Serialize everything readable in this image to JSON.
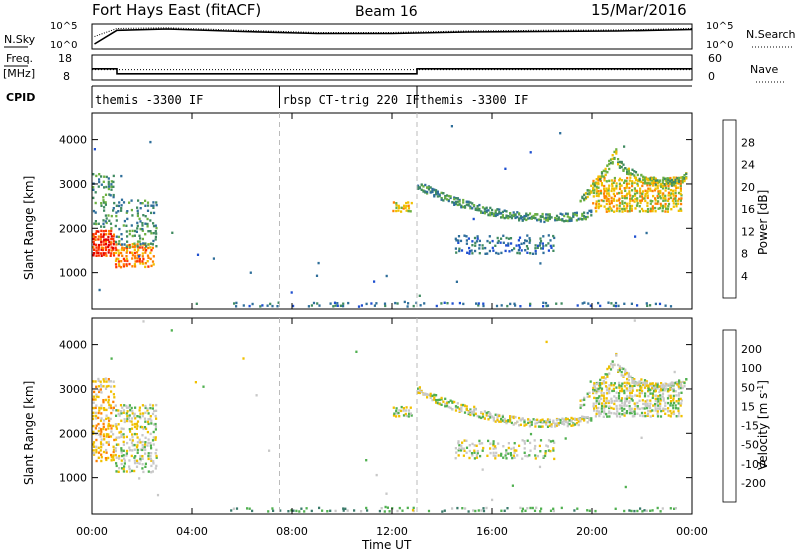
{
  "header": {
    "title": "Fort Hays East (fitACF)",
    "beam": "Beam 16",
    "date": "15/Mar/2016"
  },
  "noise_panel": {
    "left_label": "N.Sky",
    "right_label": "N.Search",
    "left_ticks": [
      "10^5",
      "10^0"
    ],
    "right_ticks": [
      "10^5",
      "10^0"
    ]
  },
  "freq_panel": {
    "left_label_1": "Freq.",
    "left_label_2": "[MHz]",
    "right_label": "Nave",
    "left_ticks": [
      "18",
      "8"
    ],
    "right_ticks": [
      "60",
      "0"
    ]
  },
  "cpid_panel": {
    "label": "CPID",
    "segments": [
      {
        "name": "themis -3300 IF",
        "start_hour": 0,
        "end_hour": 7.5
      },
      {
        "name": "rbsp CT-trig 220 IF",
        "start_hour": 7.5,
        "end_hour": 13.0
      },
      {
        "name": "themis -3300 IF",
        "start_hour": 13.0,
        "end_hour": 24
      }
    ]
  },
  "power_colorbar": {
    "label": "Power [dB]",
    "ticks": [
      "28",
      "24",
      "20",
      "16",
      "12",
      "8",
      "4"
    ],
    "colors": [
      "#0000ff",
      "#1e4fd0",
      "#2e6e9a",
      "#3f8a60",
      "#6bb040",
      "#f0c000",
      "#ff8000",
      "#ff3000",
      "#e00000"
    ]
  },
  "velocity_colorbar": {
    "label": "Velocity [m s",
    "label_exp": "-1",
    "label_end": "]",
    "ticks": [
      "200",
      "100",
      "50",
      "15",
      "-15",
      "-50",
      "-100",
      "-200"
    ],
    "colors": [
      "#0000c0",
      "#2040c0",
      "#3a7a6a",
      "#50b050",
      "#c8c8c8",
      "#f0c000",
      "#ff8000",
      "#ff0000"
    ]
  },
  "chart_data": [
    {
      "type": "line",
      "panel": "noise",
      "x_range_hours": [
        0,
        24
      ],
      "series": [
        {
          "values": [
            [
              0.1,
              0.2
            ],
            [
              1,
              0.75
            ],
            [
              3,
              0.8
            ],
            [
              6,
              0.7
            ],
            [
              9,
              0.62
            ],
            [
              12,
              0.62
            ],
            [
              15,
              0.68
            ],
            [
              18,
              0.7
            ],
            [
              21,
              0.72
            ],
            [
              24,
              0.78
            ]
          ]
        },
        {
          "values": [
            [
              0.1,
              0.5
            ],
            [
              1,
              0.82
            ],
            [
              3,
              0.85
            ],
            [
              6,
              0.75
            ],
            [
              9,
              0.66
            ],
            [
              12,
              0.66
            ],
            [
              15,
              0.72
            ],
            [
              18,
              0.75
            ],
            [
              21,
              0.76
            ],
            [
              24,
              0.82
            ]
          ]
        }
      ]
    },
    {
      "type": "line",
      "panel": "frequency",
      "x_range_hours": [
        0,
        24
      ],
      "series": [
        {
          "values": [
            [
              0,
              12.5
            ],
            [
              1,
              12.5
            ],
            [
              1,
              10.5
            ],
            [
              13,
              10.5
            ],
            [
              13,
              12.5
            ],
            [
              24,
              12.5
            ]
          ]
        },
        {
          "values": [
            [
              0,
              25
            ],
            [
              24,
              25
            ]
          ]
        }
      ]
    },
    {
      "type": "heatmap",
      "panel": "power",
      "xlabel": "",
      "ylabel": "Slant Range [km]",
      "x_range_hours": [
        0,
        24
      ],
      "ylim": [
        180,
        4600
      ],
      "y_ticks": [
        1000,
        2000,
        3000,
        4000
      ],
      "x_ticks": [
        "00:00",
        "04:00",
        "08:00",
        "12:00",
        "16:00",
        "20:00",
        "00:00"
      ],
      "regions": [
        {
          "t0": 0.0,
          "t1": 0.9,
          "r0": 1400,
          "r1": 2000,
          "level": 7,
          "density": 0.9
        },
        {
          "t0": 0.0,
          "t1": 0.9,
          "r0": 2000,
          "r1": 3300,
          "level": 3,
          "density": 0.35
        },
        {
          "t0": 0.9,
          "t1": 2.5,
          "r0": 1150,
          "r1": 1700,
          "level": 6,
          "density": 0.75
        },
        {
          "t0": 0.9,
          "t1": 2.6,
          "r0": 1600,
          "r1": 2700,
          "level": 3,
          "density": 0.35
        },
        {
          "t0": 12.0,
          "t1": 12.8,
          "r0": 2400,
          "r1": 2650,
          "level": 5,
          "density": 0.8
        },
        {
          "t0": 14.5,
          "t1": 18.5,
          "r0": 1450,
          "r1": 1900,
          "level": 2,
          "density": 0.4
        },
        {
          "t0": 20.0,
          "t1": 23.6,
          "r0": 2400,
          "r1": 3200,
          "level": 5,
          "density": 0.75
        },
        {
          "t0": 5.5,
          "t1": 23.5,
          "r0": 200,
          "r1": 380,
          "level": 2,
          "density": 0.25
        }
      ],
      "tracks": [
        {
          "t0": 13.0,
          "t1": 20.0,
          "r_start": 3000,
          "r_mid": 2000,
          "r_end": 2350,
          "level": 3,
          "width": 180
        },
        {
          "t0": 19.5,
          "t1": 21.0,
          "r_start": 2700,
          "r_mid": 3000,
          "r_end": 3800,
          "level": 4,
          "width": 200
        },
        {
          "t0": 21.0,
          "t1": 23.8,
          "r_start": 3500,
          "r_mid": 2800,
          "r_end": 3200,
          "level": 4,
          "width": 200
        }
      ]
    },
    {
      "type": "heatmap",
      "panel": "velocity",
      "xlabel": "Time UT",
      "ylabel": "Slant Range [km]",
      "x_range_hours": [
        0,
        24
      ],
      "ylim": [
        180,
        4600
      ],
      "y_ticks": [
        1000,
        2000,
        3000,
        4000
      ],
      "x_ticks": [
        "00:00",
        "04:00",
        "08:00",
        "12:00",
        "16:00",
        "20:00",
        "00:00"
      ],
      "regions": [
        {
          "t0": 0.0,
          "t1": 0.9,
          "r0": 1400,
          "r1": 3300,
          "level": 5,
          "density": 0.55
        },
        {
          "t0": 0.9,
          "t1": 2.6,
          "r0": 1150,
          "r1": 2700,
          "level": 4,
          "density": 0.55
        },
        {
          "t0": 12.0,
          "t1": 12.8,
          "r0": 2400,
          "r1": 2650,
          "level": 4,
          "density": 0.8
        },
        {
          "t0": 14.5,
          "t1": 18.5,
          "r0": 1450,
          "r1": 1900,
          "level": 4,
          "density": 0.4
        },
        {
          "t0": 20.0,
          "t1": 23.6,
          "r0": 2400,
          "r1": 3200,
          "level": 4,
          "density": 0.7
        },
        {
          "t0": 5.5,
          "t1": 23.5,
          "r0": 200,
          "r1": 380,
          "level": 3,
          "density": 0.25
        }
      ],
      "tracks": [
        {
          "t0": 13.0,
          "t1": 20.0,
          "r_start": 3000,
          "r_mid": 2000,
          "r_end": 2350,
          "level": 4,
          "width": 180
        },
        {
          "t0": 19.5,
          "t1": 21.0,
          "r_start": 2700,
          "r_mid": 3000,
          "r_end": 3800,
          "level": 4,
          "width": 200
        },
        {
          "t0": 21.0,
          "t1": 23.8,
          "r_start": 3500,
          "r_mid": 2800,
          "r_end": 3200,
          "level": 4,
          "width": 200
        }
      ]
    }
  ]
}
